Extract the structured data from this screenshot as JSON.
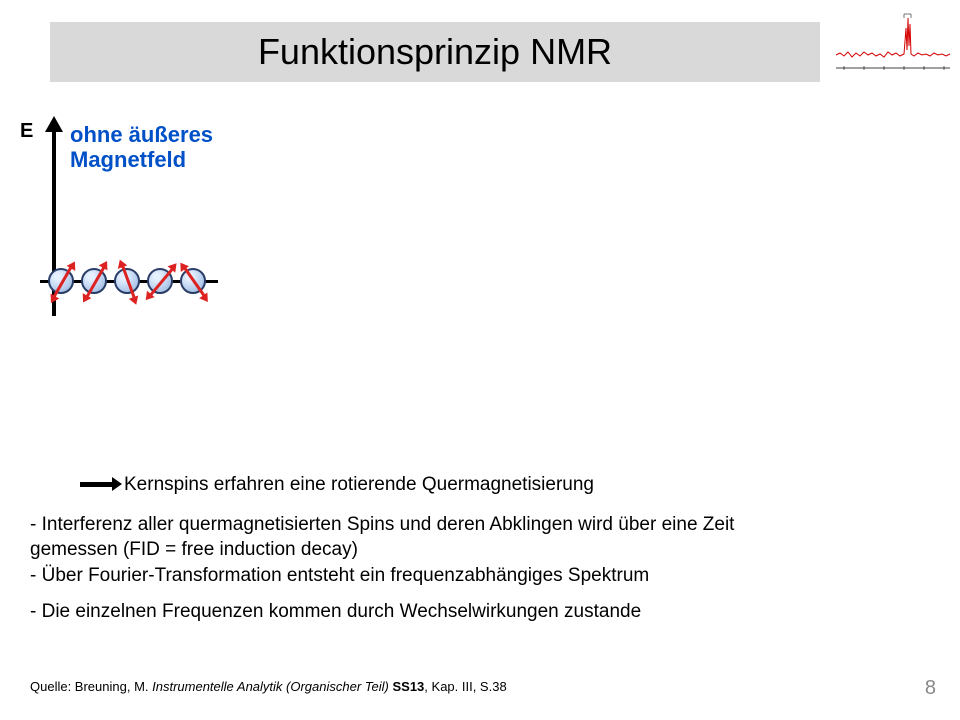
{
  "title": "Funktionsprinzip NMR",
  "axis_label": "E",
  "magnet_label_line1": "ohne äußeres",
  "magnet_label_line2": "Magnetfeld",
  "magnet_label_color": "#0050c8",
  "spectrum": {
    "line_color": "#d40000",
    "axis_color": "#000000",
    "background": "#ffffff"
  },
  "spins": {
    "count": 5,
    "sphere_fill": "#b8cfee",
    "sphere_border": "#2a3d66",
    "arrow_color": "#d22",
    "angles_deg": [
      -150,
      30,
      -20,
      40,
      -35
    ],
    "line_color": "#000000"
  },
  "bullet_arrow_text": "Kernspins erfahren eine rotierende Quermagnetisierung",
  "lines": [
    "- Interferenz aller quermagnetisierten Spins und deren Abklingen wird über eine Zeit",
    "  gemessen (FID = free induction decay)",
    "- Über Fourier-Transformation entsteht ein frequenzabhängiges Spektrum"
  ],
  "line_spaced": "- Die einzelnen Frequenzen kommen durch Wechselwirkungen zustande",
  "source_prefix": "Quelle: Breuning, M. ",
  "source_italic": "Instrumentelle Analytik (Organischer Teil) ",
  "source_bold": "SS13",
  "source_suffix": ", Kap. III, S.38",
  "page_number": "8",
  "colors": {
    "title_bg": "#d9d9d9",
    "text": "#000000",
    "page_num": "#888888"
  }
}
